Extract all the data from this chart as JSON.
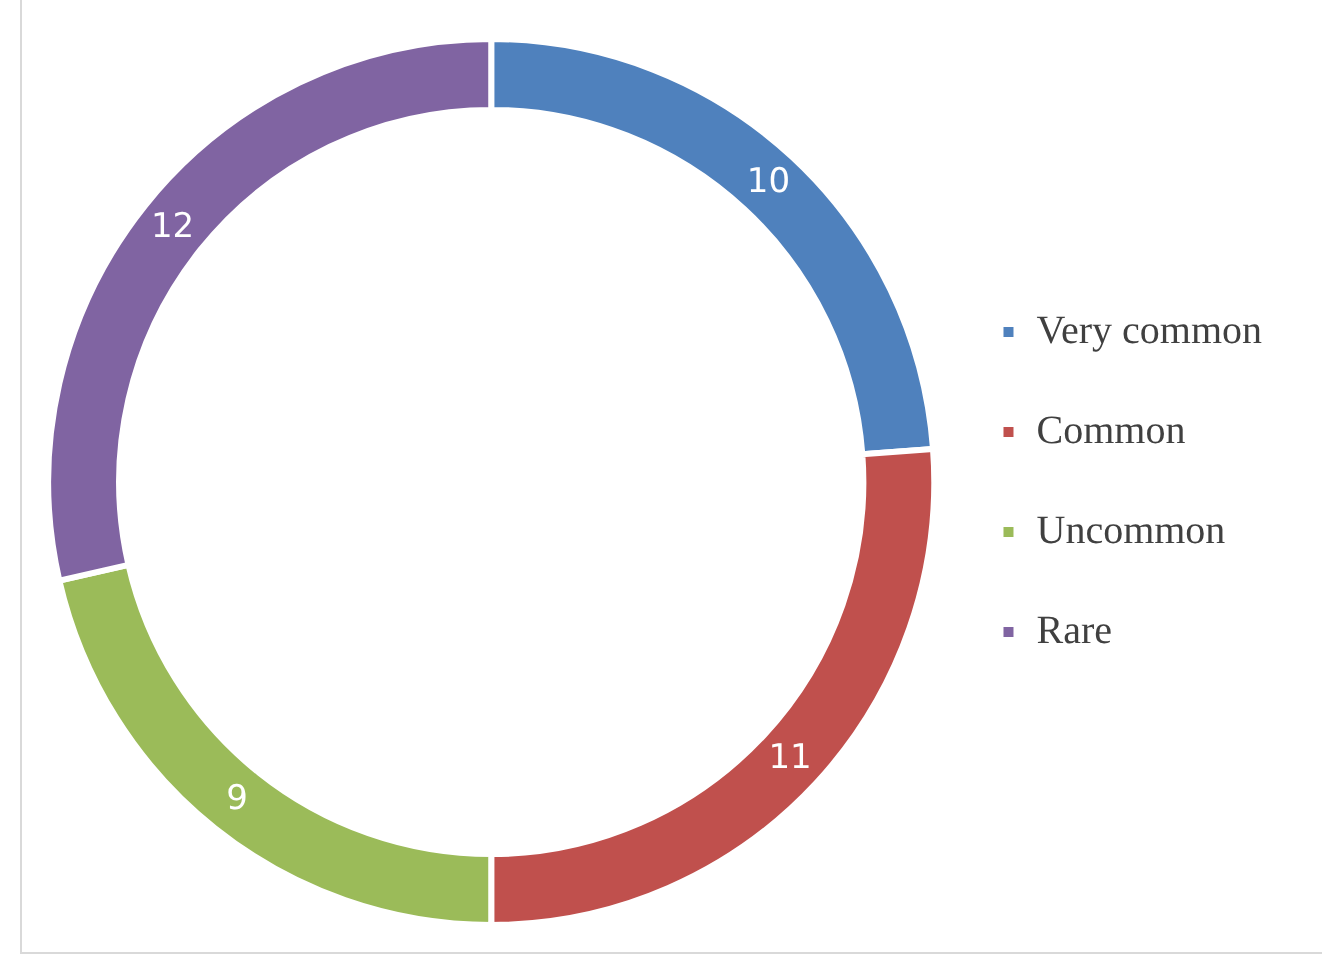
{
  "chart_data": {
    "type": "donut",
    "categories": [
      "Very common",
      "Common",
      "Uncommon",
      "Rare"
    ],
    "values": [
      10,
      11,
      9,
      12
    ],
    "colors": [
      "#4f81bd",
      "#c0504d",
      "#9bbb59",
      "#8064a2"
    ],
    "data_labels": true,
    "legend": "right"
  }
}
